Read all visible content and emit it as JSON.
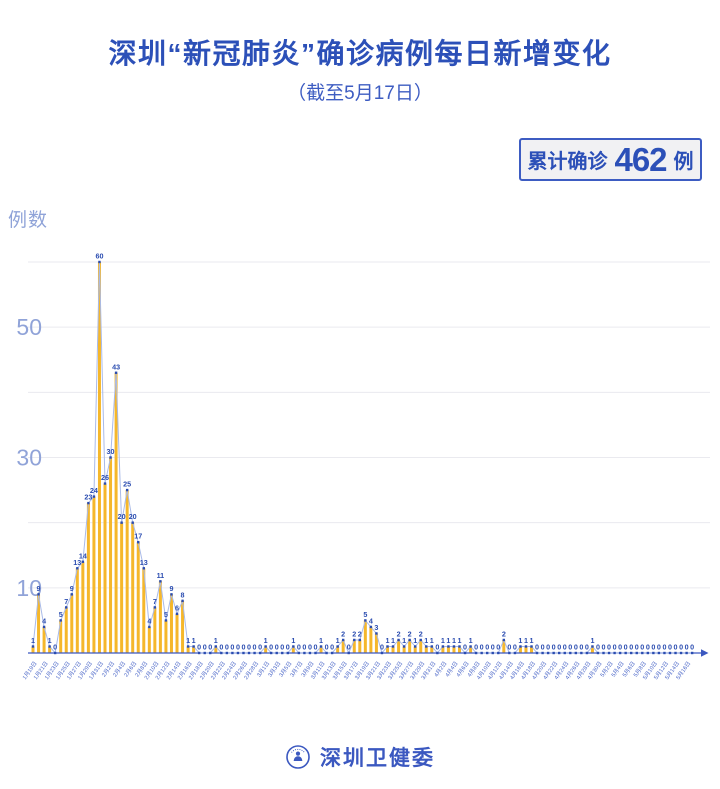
{
  "header": {
    "title": "深圳“新冠肺炎”确诊病例每日新增变化",
    "subtitle": "（截至5月17日）",
    "badge": {
      "label": "累计确诊",
      "value": "462",
      "unit": "例"
    }
  },
  "footer": {
    "org": "深圳卫健委"
  },
  "colors": {
    "title_blue": "#2c50b8",
    "bar_gold": "#f5b72b",
    "line_blue": "#a9bae8",
    "marker_blue": "#2a4cb0",
    "value_label_blue": "#2a4cb0",
    "axis_blue": "#3b58c0",
    "x_tick_blue": "#4a66c8",
    "y_tick_blue": "#90a3d8",
    "grid_gray": "#eaeaef",
    "badge_bg": "#f1f1f3"
  },
  "chart_data": {
    "type": "line+bar",
    "title": "深圳新冠肺炎确诊病例每日新增变化（截至5月17日）",
    "xlabel": "",
    "ylabel": "例数",
    "yticks": [
      10,
      30,
      50
    ],
    "gridlines": [
      10,
      20,
      30,
      40,
      50,
      60
    ],
    "ylim": [
      0,
      62
    ],
    "legend": "none",
    "x_label_step": 2,
    "total": 462,
    "x": [
      "1月19日",
      "1月20日",
      "1月21日",
      "1月22日",
      "1月23日",
      "1月24日",
      "1月25日",
      "1月26日",
      "1月27日",
      "1月28日",
      "1月29日",
      "1月30日",
      "1月31日",
      "2月1日",
      "2月2日",
      "2月3日",
      "2月4日",
      "2月5日",
      "2月6日",
      "2月7日",
      "2月8日",
      "2月9日",
      "2月10日",
      "2月11日",
      "2月12日",
      "2月13日",
      "2月14日",
      "2月15日",
      "2月16日",
      "2月17日",
      "2月18日",
      "2月19日",
      "2月20日",
      "2月21日",
      "2月22日",
      "2月23日",
      "2月24日",
      "2月25日",
      "2月26日",
      "2月27日",
      "2月28日",
      "2月29日",
      "3月1日",
      "3月2日",
      "3月3日",
      "3月4日",
      "3月5日",
      "3月6日",
      "3月7日",
      "3月8日",
      "3月9日",
      "3月10日",
      "3月11日",
      "3月12日",
      "3月13日",
      "3月14日",
      "3月15日",
      "3月16日",
      "3月17日",
      "3月18日",
      "3月19日",
      "3月20日",
      "3月21日",
      "3月22日",
      "3月23日",
      "3月24日",
      "3月25日",
      "3月26日",
      "3月27日",
      "3月28日",
      "3月29日",
      "3月30日",
      "3月31日",
      "4月1日",
      "4月2日",
      "4月3日",
      "4月4日",
      "4月5日",
      "4月6日",
      "4月7日",
      "4月8日",
      "4月9日",
      "4月10日",
      "4月11日",
      "4月12日",
      "4月13日",
      "4月14日",
      "4月15日",
      "4月16日",
      "4月17日",
      "4月18日",
      "4月19日",
      "4月20日",
      "4月21日",
      "4月22日",
      "4月23日",
      "4月24日",
      "4月25日",
      "4月26日",
      "4月27日",
      "4月28日",
      "4月29日",
      "4月30日",
      "5月1日",
      "5月2日",
      "5月3日",
      "5月4日",
      "5月5日",
      "5月6日",
      "5月7日",
      "5月8日",
      "5月9日",
      "5月10日",
      "5月11日",
      "5月12日",
      "5月13日",
      "5月14日",
      "5月15日",
      "5月16日",
      "5月17日"
    ],
    "values": [
      1,
      9,
      4,
      1,
      0,
      5,
      7,
      9,
      13,
      14,
      23,
      24,
      60,
      26,
      30,
      43,
      20,
      25,
      20,
      17,
      13,
      4,
      7,
      11,
      5,
      9,
      6,
      8,
      1,
      1,
      0,
      0,
      0,
      1,
      0,
      0,
      0,
      0,
      0,
      0,
      0,
      0,
      1,
      0,
      0,
      0,
      0,
      1,
      0,
      0,
      0,
      0,
      1,
      0,
      0,
      1,
      2,
      0,
      2,
      2,
      5,
      4,
      3,
      0,
      1,
      1,
      2,
      1,
      2,
      1,
      2,
      1,
      1,
      0,
      1,
      1,
      1,
      1,
      0,
      1,
      0,
      0,
      0,
      0,
      0,
      2,
      0,
      0,
      1,
      1,
      1,
      0,
      0,
      0,
      0,
      0,
      0,
      0,
      0,
      0,
      0,
      1,
      0,
      0,
      0,
      0,
      0,
      0,
      0,
      0,
      0,
      0,
      0,
      0,
      0,
      0,
      0,
      0,
      0,
      0
    ]
  }
}
